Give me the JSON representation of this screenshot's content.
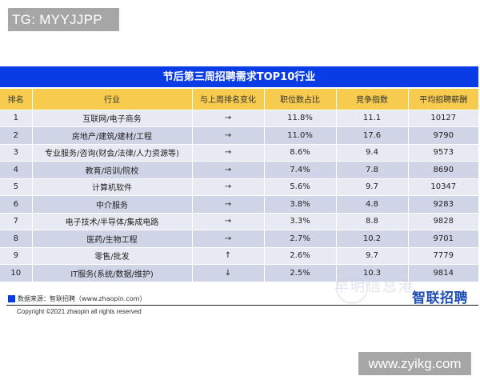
{
  "overlay": {
    "tg_label": "TG: MYYJJPP",
    "site_label": "www.zyikg.com"
  },
  "table": {
    "title": "节后第三周招聘需求TOP10行业",
    "headers": [
      "排名",
      "行业",
      "与上周排名变化",
      "职位数占比",
      "竞争指数",
      "平均招聘薪酬"
    ],
    "rows": [
      {
        "rank": "1",
        "industry": "互联网/电子商务",
        "change": "→",
        "ratio": "11.8%",
        "competition": "11.1",
        "salary": "10127"
      },
      {
        "rank": "2",
        "industry": "房地产/建筑/建材/工程",
        "change": "→",
        "ratio": "11.0%",
        "competition": "17.6",
        "salary": "9790"
      },
      {
        "rank": "3",
        "industry": "专业服务/咨询(财会/法律/人力资源等)",
        "change": "→",
        "ratio": "8.6%",
        "competition": "9.4",
        "salary": "9573"
      },
      {
        "rank": "4",
        "industry": "教育/培训/院校",
        "change": "→",
        "ratio": "7.4%",
        "competition": "7.8",
        "salary": "8690"
      },
      {
        "rank": "5",
        "industry": "计算机软件",
        "change": "→",
        "ratio": "5.6%",
        "competition": "9.7",
        "salary": "10347"
      },
      {
        "rank": "6",
        "industry": "中介服务",
        "change": "→",
        "ratio": "3.8%",
        "competition": "4.8",
        "salary": "9283"
      },
      {
        "rank": "7",
        "industry": "电子技术/半导体/集成电路",
        "change": "→",
        "ratio": "3.3%",
        "competition": "8.8",
        "salary": "9828"
      },
      {
        "rank": "8",
        "industry": "医药/生物工程",
        "change": "→",
        "ratio": "2.7%",
        "competition": "10.2",
        "salary": "9701"
      },
      {
        "rank": "9",
        "industry": "零售/批发",
        "change": "↑",
        "ratio": "2.6%",
        "competition": "9.7",
        "salary": "7779"
      },
      {
        "rank": "10",
        "industry": "IT服务(系统/数据/维护)",
        "change": "↓",
        "ratio": "2.5%",
        "competition": "10.3",
        "salary": "9814"
      }
    ]
  },
  "footer": {
    "source": "数据来源：智联招聘（www.zhaopin.com）",
    "copyright": "Copyright ©2021 zhaopin all rights reserved",
    "brand": "智联招聘",
    "watermark": "早明信息港"
  },
  "colors": {
    "title_bg": "#0a3ce6",
    "header_bg": "#f7cb4d",
    "row_odd": "#e8eaf3",
    "row_even": "#cfd4e6",
    "brand": "#1f4fb5"
  }
}
